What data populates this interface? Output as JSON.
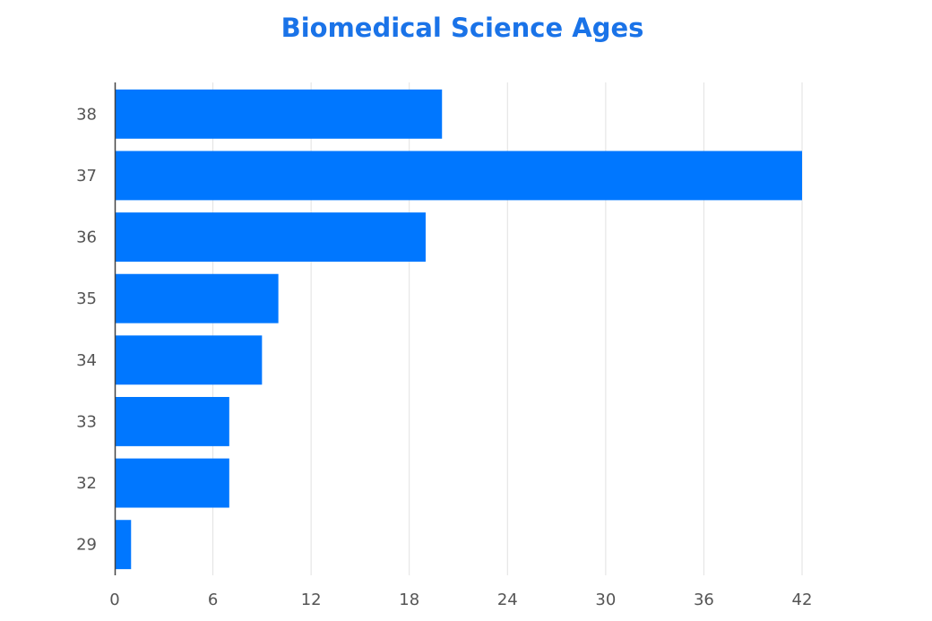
{
  "chart_data": {
    "type": "bar",
    "orientation": "horizontal",
    "title": "Biomedical Science Ages",
    "xlabel": "",
    "ylabel": "",
    "categories": [
      "38",
      "37",
      "36",
      "35",
      "34",
      "33",
      "32",
      "29"
    ],
    "values": [
      20,
      42,
      19,
      10,
      9,
      7,
      7,
      1
    ],
    "xlim": [
      0,
      42
    ],
    "xticks": [
      "0",
      "6",
      "12",
      "18",
      "24",
      "30",
      "36",
      "42"
    ],
    "grid": "vertical",
    "legend": "none",
    "bar_color": "#0077ff",
    "title_color": "#1a73e8"
  }
}
